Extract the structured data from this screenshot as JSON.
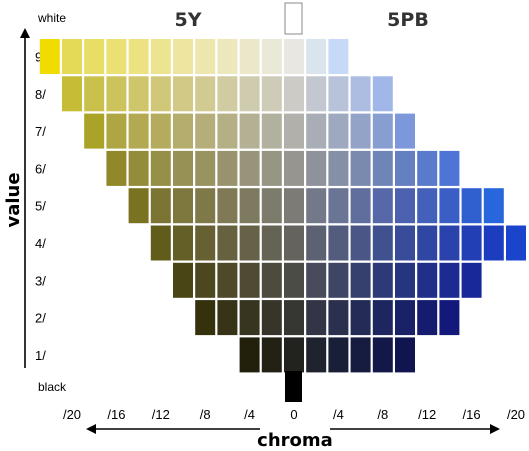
{
  "hues": {
    "left": "5Y",
    "right": "5PB"
  },
  "value_axis": {
    "title": "value",
    "top_label": "white",
    "bottom_label": "black",
    "levels": [
      {
        "value": 9,
        "label": "9/"
      },
      {
        "value": 8,
        "label": "8/"
      },
      {
        "value": 7,
        "label": "7/"
      },
      {
        "value": 6,
        "label": "6/"
      },
      {
        "value": 5,
        "label": "5/"
      },
      {
        "value": 4,
        "label": "4/"
      },
      {
        "value": 3,
        "label": "3/"
      },
      {
        "value": 2,
        "label": "2/"
      },
      {
        "value": 1,
        "label": "1/"
      }
    ]
  },
  "chroma_axis": {
    "title": "chroma",
    "ticks": [
      {
        "chroma": -20,
        "label": "/20"
      },
      {
        "chroma": -16,
        "label": "/16"
      },
      {
        "chroma": -12,
        "label": "/12"
      },
      {
        "chroma": -8,
        "label": "/8"
      },
      {
        "chroma": -4,
        "label": "/4"
      },
      {
        "chroma": 0,
        "label": "0"
      },
      {
        "chroma": 4,
        "label": "/4"
      },
      {
        "chroma": 8,
        "label": "/8"
      },
      {
        "chroma": 12,
        "label": "/12"
      },
      {
        "chroma": 16,
        "label": "/16"
      },
      {
        "chroma": 20,
        "label": "/20"
      }
    ]
  },
  "rows": [
    {
      "value": 9,
      "left_chroma": 20,
      "right_chroma": 4,
      "left_colors": [
        "#e8e7e1",
        "#eae8d6",
        "#ebe8c9",
        "#ede8bb",
        "#eee7ad",
        "#eee6a0",
        "#ede490",
        "#ece282",
        "#eae073",
        "#e8dd65",
        "#e5da55",
        "#f0dc00"
      ],
      "right_colors": [
        "#dae4ef",
        "#c6d9f7"
      ]
    },
    {
      "value": 8,
      "left_chroma": 18,
      "right_chroma": 8,
      "left_colors": [
        "#cccbc5",
        "#cecbb9",
        "#cfcbaf",
        "#d1cba1",
        "#d2ca93",
        "#d2c987",
        "#d1c778",
        "#cfc56a",
        "#cdc35c",
        "#cac04c",
        "#c6bc35"
      ],
      "right_colors": [
        "#c3c8d0",
        "#b8c2d9",
        "#adbde2",
        "#a1b7ea"
      ]
    },
    {
      "value": 7,
      "left_chroma": 16,
      "right_chroma": 10,
      "left_colors": [
        "#b1b0aa",
        "#b2b09e",
        "#b3b093",
        "#b5af86",
        "#b5ae7a",
        "#b5ad6d",
        "#b4ab5f",
        "#b2a952",
        "#afa643",
        "#aba228"
      ],
      "right_colors": [
        "#a8adb6",
        "#9ea8bf",
        "#93a3c8",
        "#889ed1",
        "#7c98da"
      ]
    },
    {
      "value": 6,
      "left_chroma": 14,
      "right_chroma": 14,
      "left_colors": [
        "#969590",
        "#979584",
        "#989479",
        "#99936d",
        "#999261",
        "#989155",
        "#968f48",
        "#938c3b",
        "#908829"
      ],
      "right_colors": [
        "#8e939b",
        "#8490a5",
        "#7a8aaf",
        "#6f85b8",
        "#6480c1",
        "#5a7acb",
        "#4e74d5"
      ]
    },
    {
      "value": 5,
      "left_chroma": 12,
      "right_chroma": 18,
      "left_colors": [
        "#7c7b76",
        "#7d7b6b",
        "#7e7a60",
        "#7f7955",
        "#7f7849",
        "#7e773e",
        "#7c7432",
        "#797220"
      ],
      "right_colors": [
        "#74798a",
        "#6a7494",
        "#606e9e",
        "#5668a7",
        "#4c62b1",
        "#4361bb",
        "#3a5ec5",
        "#3060cf",
        "#2766dd"
      ]
    },
    {
      "value": 4,
      "left_chroma": 10,
      "right_chroma": 20,
      "left_colors": [
        "#64635e",
        "#656353",
        "#666248",
        "#66613e",
        "#666033",
        "#645e27",
        "#625c1b"
      ],
      "right_colors": [
        "#5d6272",
        "#535c7c",
        "#4a5786",
        "#415190",
        "#384c99",
        "#3046a3",
        "#2942ac",
        "#223fb5",
        "#1c3dbf",
        "#1b44cc"
      ]
    },
    {
      "value": 3,
      "left_chroma": 8,
      "right_chroma": 16,
      "left_colors": [
        "#4c4c47",
        "#4d4b3d",
        "#4e4a33",
        "#4e4929",
        "#4c471f",
        "#4a4514"
      ],
      "right_colors": [
        "#474b5b",
        "#3e4565",
        "#36406e",
        "#2e3a77",
        "#263580",
        "#202f89",
        "#1c2b91",
        "#192899"
      ]
    },
    {
      "value": 2,
      "left_chroma": 6,
      "right_chroma": 14,
      "left_colors": [
        "#363632",
        "#373529",
        "#373420",
        "#363317",
        "#34310c"
      ],
      "right_colors": [
        "#313545",
        "#2a304e",
        "#242b57",
        "#1e265f",
        "#192167",
        "#151c6f",
        "#12197a"
      ]
    },
    {
      "value": 1,
      "left_chroma": 2,
      "right_chroma": 10,
      "left_colors": [
        "#22221f",
        "#232114",
        "#22200b"
      ],
      "right_colors": [
        "#1f2330",
        "#1a1f38",
        "#161b40",
        "#131848",
        "#11154f"
      ]
    }
  ],
  "extremes": {
    "white_color": "#ffffff",
    "black_color": "#000000"
  }
}
